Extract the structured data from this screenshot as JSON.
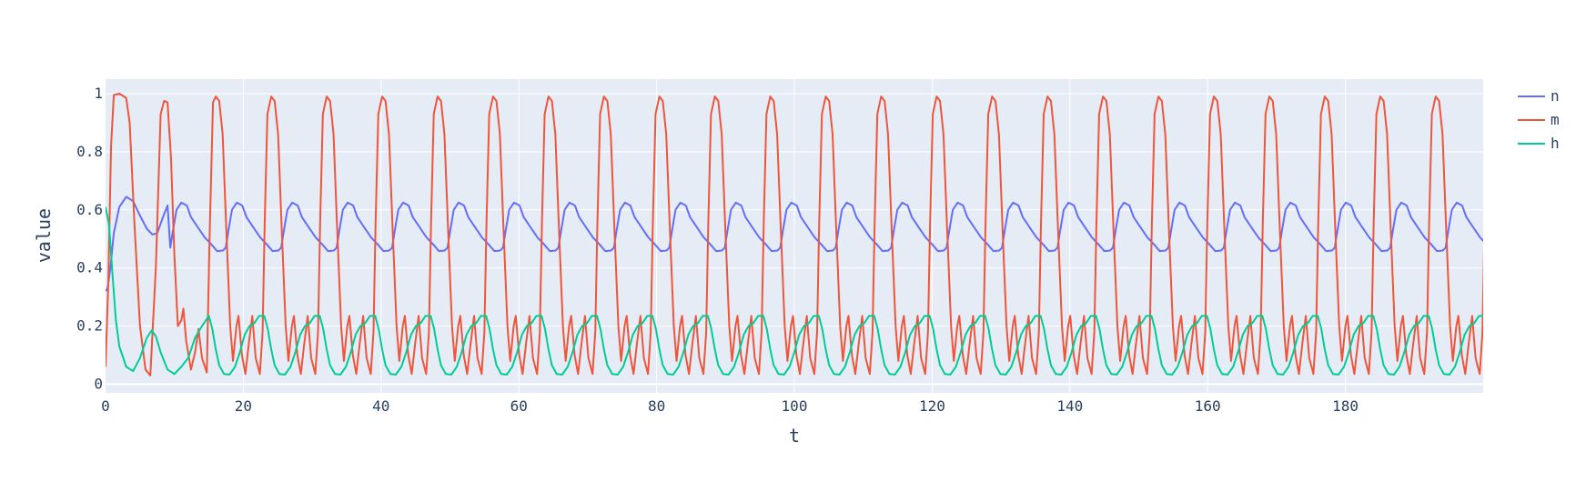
{
  "chart_data": {
    "type": "line",
    "xlabel": "t",
    "ylabel": "value",
    "xlim": [
      0,
      200
    ],
    "ylim": [
      -0.03,
      1.05
    ],
    "x_ticks": [
      0,
      20,
      40,
      60,
      80,
      100,
      120,
      140,
      160,
      180
    ],
    "y_ticks": [
      0,
      0.2,
      0.4,
      0.6,
      0.8,
      1
    ],
    "y_tick_labels": [
      "0",
      "0.2",
      "0.4",
      "0.6",
      "0.8",
      "1"
    ],
    "grid": true,
    "legend_position": "top-right",
    "plot_background": "#e5ecf6",
    "period": 8.05,
    "first_spike": 2,
    "series": [
      {
        "name": "n",
        "color": "#636efa",
        "transient": [
          [
            0,
            0.32
          ],
          [
            0.3,
            0.33
          ],
          [
            0.7,
            0.4
          ],
          [
            1.2,
            0.52
          ],
          [
            2,
            0.61
          ],
          [
            3,
            0.645
          ],
          [
            4,
            0.63
          ],
          [
            5,
            0.58
          ],
          [
            6,
            0.535
          ],
          [
            6.8,
            0.515
          ],
          [
            7.5,
            0.52
          ],
          [
            8.5,
            0.585
          ],
          [
            9,
            0.615
          ]
        ],
        "cycle": [
          [
            0,
            0.46
          ],
          [
            0.4,
            0.47
          ],
          [
            0.8,
            0.53
          ],
          [
            1.3,
            0.6
          ],
          [
            2,
            0.625
          ],
          [
            2.8,
            0.615
          ],
          [
            3.4,
            0.575
          ],
          [
            4.4,
            0.54
          ],
          [
            5.4,
            0.505
          ],
          [
            6.4,
            0.48
          ],
          [
            7.2,
            0.458
          ],
          [
            8.05,
            0.46
          ]
        ],
        "cycle_start": 9
      },
      {
        "name": "m",
        "color": "#EF553B",
        "transient": [
          [
            0,
            0.06
          ],
          [
            0.4,
            0.35
          ],
          [
            0.8,
            0.82
          ],
          [
            1.2,
            0.995
          ],
          [
            2,
            1.0
          ],
          [
            3,
            0.985
          ],
          [
            3.5,
            0.9
          ],
          [
            4.2,
            0.55
          ],
          [
            5,
            0.2
          ],
          [
            5.8,
            0.05
          ],
          [
            6.5,
            0.03
          ],
          [
            7.3,
            0.4
          ],
          [
            8,
            0.93
          ],
          [
            8.5,
            0.975
          ],
          [
            9,
            0.97
          ],
          [
            9.5,
            0.78
          ],
          [
            10,
            0.44
          ],
          [
            10.5,
            0.2
          ],
          [
            11,
            0.22
          ],
          [
            11.3,
            0.26
          ],
          [
            11.7,
            0.15
          ],
          [
            12.4,
            0.05
          ],
          [
            13,
            0.11
          ],
          [
            13.5,
            0.19
          ],
          [
            14,
            0.09
          ],
          [
            14.7,
            0.04
          ],
          [
            15.1,
            0.5
          ],
          [
            15.6,
            0.97
          ],
          [
            16,
            0.99
          ]
        ],
        "cycle": [
          [
            0,
            0.99
          ],
          [
            0.5,
            0.975
          ],
          [
            1,
            0.86
          ],
          [
            1.5,
            0.55
          ],
          [
            2.1,
            0.2
          ],
          [
            2.5,
            0.08
          ],
          [
            3,
            0.2
          ],
          [
            3.3,
            0.235
          ],
          [
            3.8,
            0.1
          ],
          [
            4.3,
            0.035
          ],
          [
            4.8,
            0.14
          ],
          [
            5.3,
            0.235
          ],
          [
            5.8,
            0.09
          ],
          [
            6.4,
            0.035
          ],
          [
            6.8,
            0.18
          ],
          [
            7.1,
            0.55
          ],
          [
            7.5,
            0.93
          ],
          [
            8.05,
            0.99
          ]
        ],
        "cycle_start": 16
      },
      {
        "name": "h",
        "color": "#00cc96",
        "transient": [
          [
            0,
            0.61
          ],
          [
            0.5,
            0.55
          ],
          [
            1,
            0.38
          ],
          [
            1.5,
            0.22
          ],
          [
            2,
            0.13
          ],
          [
            3,
            0.06
          ],
          [
            4,
            0.045
          ],
          [
            5,
            0.09
          ],
          [
            6,
            0.16
          ],
          [
            6.7,
            0.185
          ],
          [
            7.3,
            0.165
          ],
          [
            8,
            0.11
          ],
          [
            9,
            0.05
          ],
          [
            10,
            0.035
          ],
          [
            11,
            0.06
          ],
          [
            12,
            0.09
          ],
          [
            13,
            0.16
          ],
          [
            14,
            0.2
          ],
          [
            15,
            0.235
          ]
        ],
        "cycle": [
          [
            0,
            0.235
          ],
          [
            0.5,
            0.19
          ],
          [
            1,
            0.12
          ],
          [
            1.5,
            0.065
          ],
          [
            2.2,
            0.035
          ],
          [
            3,
            0.033
          ],
          [
            3.8,
            0.06
          ],
          [
            4.5,
            0.11
          ],
          [
            5.2,
            0.17
          ],
          [
            5.9,
            0.2
          ],
          [
            6.6,
            0.21
          ],
          [
            7.3,
            0.235
          ],
          [
            8.05,
            0.235
          ]
        ],
        "cycle_start": 15
      }
    ]
  }
}
